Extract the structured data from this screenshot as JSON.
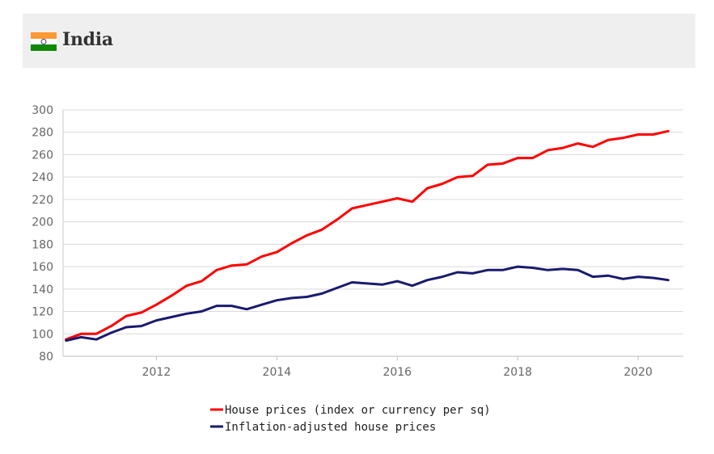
{
  "header": {
    "title": "India",
    "flag_colors": {
      "saffron": "#FF9933",
      "white": "#FFFFFF",
      "green": "#138808",
      "chakra": "#000080"
    }
  },
  "chart_data": {
    "type": "line",
    "title": "India",
    "xlabel": "",
    "ylabel": "",
    "xlim": [
      2010.45,
      2020.75
    ],
    "ylim": [
      80,
      300
    ],
    "yticks": [
      80,
      100,
      120,
      140,
      160,
      180,
      200,
      220,
      240,
      260,
      280,
      300
    ],
    "xticks": [
      2012,
      2014,
      2016,
      2018,
      2020
    ],
    "grid": true,
    "legend_position": "bottom-center",
    "x": [
      2010.5,
      2010.75,
      2011.0,
      2011.25,
      2011.5,
      2011.75,
      2012.0,
      2012.25,
      2012.5,
      2012.75,
      2013.0,
      2013.25,
      2013.5,
      2013.75,
      2014.0,
      2014.25,
      2014.5,
      2014.75,
      2015.0,
      2015.25,
      2015.5,
      2015.75,
      2016.0,
      2016.25,
      2016.5,
      2016.75,
      2017.0,
      2017.25,
      2017.5,
      2017.75,
      2018.0,
      2018.25,
      2018.5,
      2018.75,
      2019.0,
      2019.25,
      2019.5,
      2019.75,
      2020.0,
      2020.25,
      2020.5
    ],
    "series": [
      {
        "name": "House prices (index or currency per sq)",
        "color": "#FF0000",
        "values": [
          95,
          100,
          100,
          107,
          116,
          119,
          126,
          134,
          143,
          147,
          157,
          161,
          162,
          169,
          173,
          181,
          188,
          193,
          202,
          212,
          215,
          218,
          221,
          218,
          230,
          234,
          240,
          241,
          251,
          252,
          257,
          257,
          264,
          266,
          270,
          267,
          273,
          275,
          278,
          278,
          281
        ]
      },
      {
        "name": "Inflation-adjusted house prices",
        "color": "#1A1A6E",
        "values": [
          94,
          97,
          95,
          101,
          106,
          107,
          112,
          115,
          118,
          120,
          125,
          125,
          122,
          126,
          130,
          132,
          133,
          136,
          141,
          146,
          145,
          144,
          147,
          143,
          148,
          151,
          155,
          154,
          157,
          157,
          160,
          159,
          157,
          158,
          157,
          151,
          152,
          149,
          151,
          150,
          148
        ]
      }
    ]
  }
}
